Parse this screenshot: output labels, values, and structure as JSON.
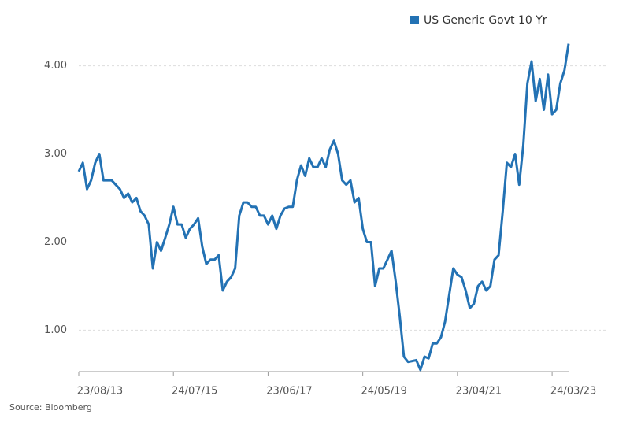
{
  "chart_data": {
    "type": "line",
    "source": "Source: Bloomberg",
    "categories": [
      "23/08/13",
      null,
      null,
      null,
      null,
      null,
      null,
      null,
      null,
      null,
      null,
      null,
      null,
      null,
      null,
      null,
      null,
      null,
      null,
      null,
      null,
      null,
      null,
      "24/07/15",
      null,
      null,
      null,
      null,
      null,
      null,
      null,
      null,
      null,
      null,
      null,
      null,
      null,
      null,
      null,
      null,
      null,
      null,
      null,
      null,
      null,
      null,
      "23/06/17",
      null,
      null,
      null,
      null,
      null,
      null,
      null,
      null,
      null,
      null,
      null,
      null,
      null,
      null,
      null,
      null,
      null,
      null,
      null,
      null,
      null,
      null,
      "24/05/19",
      null,
      null,
      null,
      null,
      null,
      null,
      null,
      null,
      null,
      null,
      null,
      null,
      null,
      null,
      null,
      null,
      null,
      null,
      null,
      null,
      null,
      null,
      "23/04/21",
      null,
      null,
      null,
      null,
      null,
      null,
      null,
      null,
      null,
      null,
      null,
      null,
      null,
      null,
      null,
      null,
      null,
      null,
      null,
      null,
      null,
      null,
      "24/03/23",
      null,
      null,
      null,
      null
    ],
    "series": [
      {
        "name": "US Generic Govt 10 Yr",
        "color": "#2372b4",
        "values": [
          2.8,
          2.9,
          2.6,
          2.7,
          2.9,
          3.0,
          2.7,
          2.7,
          2.7,
          2.65,
          2.6,
          2.5,
          2.55,
          2.45,
          2.5,
          2.35,
          2.3,
          2.2,
          1.7,
          2.0,
          1.9,
          2.05,
          2.2,
          2.4,
          2.2,
          2.2,
          2.05,
          2.15,
          2.2,
          2.27,
          1.95,
          1.75,
          1.8,
          1.8,
          1.85,
          1.45,
          1.55,
          1.6,
          1.7,
          2.3,
          2.45,
          2.45,
          2.4,
          2.4,
          2.3,
          2.3,
          2.2,
          2.3,
          2.15,
          2.3,
          2.38,
          2.4,
          2.4,
          2.7,
          2.87,
          2.75,
          2.95,
          2.85,
          2.85,
          2.95,
          2.85,
          3.05,
          3.15,
          3.0,
          2.7,
          2.65,
          2.7,
          2.45,
          2.5,
          2.15,
          2.0,
          2.0,
          1.5,
          1.7,
          1.7,
          1.8,
          1.9,
          1.55,
          1.15,
          0.7,
          0.64,
          0.65,
          0.66,
          0.55,
          0.7,
          0.68,
          0.85,
          0.85,
          0.92,
          1.1,
          1.4,
          1.7,
          1.63,
          1.6,
          1.45,
          1.25,
          1.3,
          1.5,
          1.55,
          1.45,
          1.5,
          1.8,
          1.85,
          2.35,
          2.9,
          2.85,
          3.0,
          2.65,
          3.1,
          3.8,
          4.05,
          3.6,
          3.85,
          3.5,
          3.9,
          3.45,
          3.5,
          3.8,
          3.95,
          4.25
        ]
      }
    ],
    "ylim": [
      0.53,
      4.3
    ],
    "yticks": [
      {
        "value": 1,
        "label": "1.00"
      },
      {
        "value": 2,
        "label": "2.00"
      },
      {
        "value": 3,
        "label": "3.00"
      },
      {
        "value": 4,
        "label": "4.00"
      }
    ],
    "grid": true
  }
}
